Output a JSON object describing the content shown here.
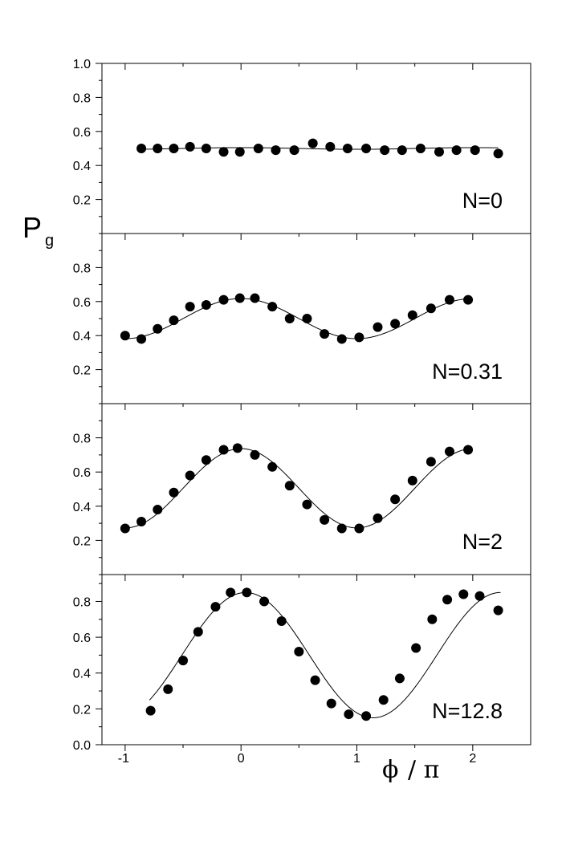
{
  "chart_data": {
    "type": "scatter",
    "ylabel": {
      "main": "P",
      "sub": "g"
    },
    "xlabel": {
      "phi": "ϕ",
      "slash": "/",
      "pi": "π"
    },
    "xlim": [
      -1.2,
      2.5
    ],
    "x_ticks": [
      -1,
      0,
      1,
      2
    ],
    "x_tick_labels": [
      "-1",
      "0",
      "1",
      "2"
    ],
    "panels": [
      {
        "label": "N=0",
        "ylim": [
          0.0,
          1.0
        ],
        "y_ticks": [
          0.2,
          0.4,
          0.6,
          0.8,
          1.0
        ],
        "y_tick_labels": [
          "0.2",
          "0.4",
          "0.6",
          "0.8",
          "1.0"
        ],
        "x": [
          -0.86,
          -0.72,
          -0.58,
          -0.44,
          -0.3,
          -0.15,
          -0.01,
          0.15,
          0.3,
          0.46,
          0.62,
          0.77,
          0.92,
          1.08,
          1.24,
          1.39,
          1.55,
          1.71,
          1.86,
          2.02,
          2.22
        ],
        "y": [
          0.5,
          0.5,
          0.5,
          0.51,
          0.5,
          0.48,
          0.48,
          0.5,
          0.49,
          0.49,
          0.53,
          0.51,
          0.5,
          0.5,
          0.49,
          0.49,
          0.5,
          0.48,
          0.49,
          0.49,
          0.47
        ],
        "fit": {
          "mean": 0.5,
          "amp": 0.005,
          "period": 2.0,
          "x_range": [
            -0.88,
            2.22
          ]
        }
      },
      {
        "label": "N=0.31",
        "ylim": [
          0.0,
          1.0
        ],
        "y_ticks": [
          0.2,
          0.4,
          0.6,
          0.8
        ],
        "y_tick_labels": [
          "0.2",
          "0.4",
          "0.6",
          "0.8"
        ],
        "x": [
          -1.0,
          -0.86,
          -0.72,
          -0.58,
          -0.44,
          -0.3,
          -0.15,
          -0.01,
          0.12,
          0.27,
          0.42,
          0.57,
          0.72,
          0.87,
          1.02,
          1.18,
          1.33,
          1.48,
          1.64,
          1.8,
          1.96
        ],
        "y": [
          0.4,
          0.38,
          0.44,
          0.49,
          0.57,
          0.58,
          0.61,
          0.62,
          0.62,
          0.57,
          0.5,
          0.5,
          0.41,
          0.38,
          0.39,
          0.45,
          0.47,
          0.52,
          0.56,
          0.61,
          0.61
        ],
        "fit": {
          "mean": 0.5,
          "amp": 0.118,
          "period": 2.0,
          "x_range": [
            -1.02,
            1.98
          ]
        }
      },
      {
        "label": "N=2",
        "ylim": [
          0.0,
          1.0
        ],
        "y_ticks": [
          0.2,
          0.4,
          0.6,
          0.8
        ],
        "y_tick_labels": [
          "0.2",
          "0.4",
          "0.6",
          "0.8"
        ],
        "x": [
          -1.0,
          -0.86,
          -0.72,
          -0.58,
          -0.44,
          -0.3,
          -0.15,
          -0.03,
          0.12,
          0.27,
          0.42,
          0.57,
          0.72,
          0.87,
          1.02,
          1.18,
          1.33,
          1.48,
          1.64,
          1.8,
          1.96
        ],
        "y": [
          0.27,
          0.31,
          0.38,
          0.48,
          0.58,
          0.67,
          0.73,
          0.74,
          0.7,
          0.63,
          0.52,
          0.41,
          0.32,
          0.27,
          0.27,
          0.33,
          0.44,
          0.55,
          0.66,
          0.72,
          0.73
        ],
        "fit": {
          "mean": 0.505,
          "amp": 0.232,
          "period": 2.0,
          "x_range": [
            -1.02,
            1.98
          ]
        }
      },
      {
        "label": "N=12.8",
        "ylim": [
          0.0,
          0.95
        ],
        "y_ticks": [
          0.0,
          0.2,
          0.4,
          0.6,
          0.8
        ],
        "y_tick_labels": [
          "0.0",
          "0.2",
          "0.4",
          "0.6",
          "0.8"
        ],
        "x": [
          -0.78,
          -0.63,
          -0.5,
          -0.37,
          -0.22,
          -0.09,
          0.05,
          0.2,
          0.35,
          0.5,
          0.64,
          0.78,
          0.93,
          1.08,
          1.23,
          1.37,
          1.51,
          1.65,
          1.78,
          1.92,
          2.06,
          2.22
        ],
        "y": [
          0.19,
          0.31,
          0.47,
          0.63,
          0.77,
          0.85,
          0.85,
          0.8,
          0.69,
          0.52,
          0.36,
          0.23,
          0.17,
          0.16,
          0.25,
          0.37,
          0.54,
          0.7,
          0.81,
          0.84,
          0.83,
          0.75
        ],
        "fit": {
          "mean": 0.5,
          "amp": 0.35,
          "period": 2.2,
          "phase": 0.04,
          "x_range": [
            -0.79,
            2.24
          ]
        }
      }
    ]
  }
}
